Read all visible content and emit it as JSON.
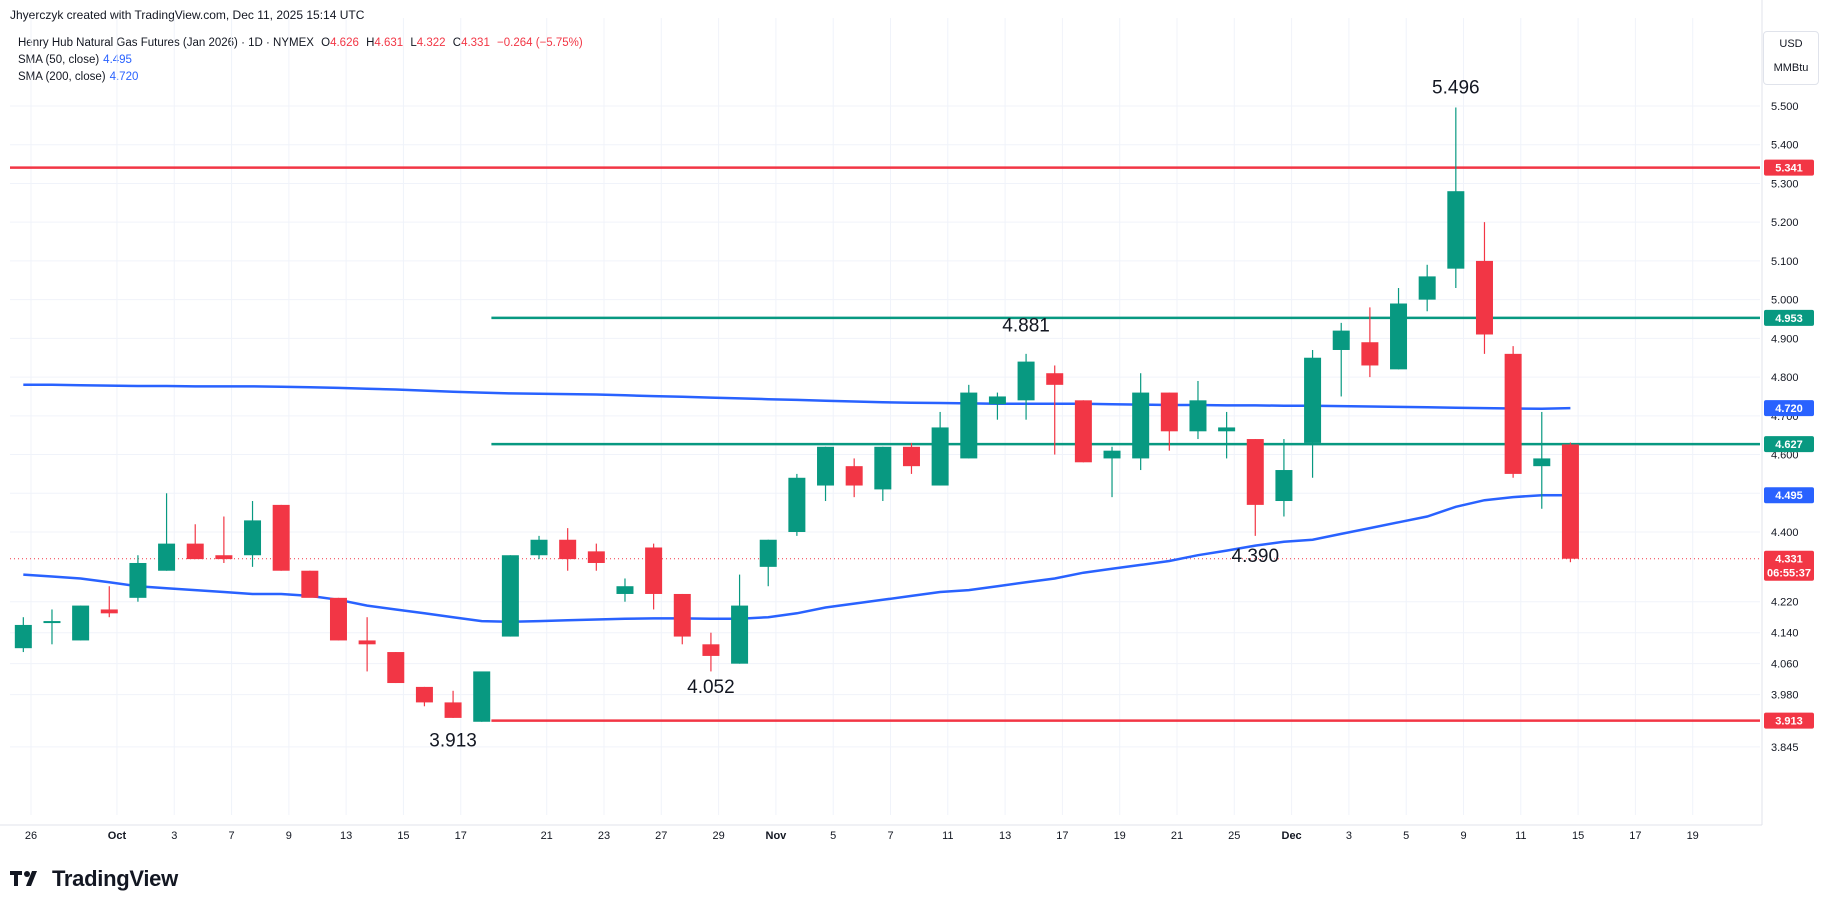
{
  "header": {
    "created_by": "Jhyerczyk created with TradingView.com, Dec 11, 2025 15:14 UTC"
  },
  "legend": {
    "symbol": "Henry Hub Natural Gas Futures (Jan 2026) · 1D · NYMEX",
    "o_label": "O",
    "o": "4.626",
    "h_label": "H",
    "h": "4.631",
    "l_label": "L",
    "l": "4.322",
    "c_label": "C",
    "c": "4.331",
    "change": "−0.264 (−5.75%)",
    "sma50_label": "SMA (50, close)",
    "sma50_value": "4.495",
    "sma200_label": "SMA (200, close)",
    "sma200_value": "4.720"
  },
  "currency": "USD",
  "unit": "MMBtu",
  "brand": "TradingView",
  "colors": {
    "up": "#089981",
    "down": "#f23645",
    "sma": "#2962ff",
    "support": "#f23645",
    "resistance": "#089981"
  },
  "chart_data": {
    "type": "candlestick",
    "y_ticks": [
      "5.500",
      "5.400",
      "5.300",
      "5.200",
      "5.100",
      "5.000",
      "4.900",
      "4.800",
      "4.700",
      "4.600",
      "4.500",
      "4.400",
      "4.220",
      "4.140",
      "4.060",
      "3.980",
      "3.845"
    ],
    "x_ticks": [
      "26",
      "Oct",
      "3",
      "7",
      "9",
      "13",
      "15",
      "17",
      "21",
      "23",
      "27",
      "29",
      "Nov",
      "5",
      "7",
      "11",
      "13",
      "17",
      "19",
      "21",
      "25",
      "Dec",
      "3",
      "5",
      "9",
      "11",
      "15",
      "17",
      "19"
    ],
    "candles": [
      {
        "o": 4.1,
        "h": 4.18,
        "l": 4.09,
        "c": 4.16
      },
      {
        "o": 4.17,
        "h": 4.2,
        "l": 4.11,
        "c": 4.17
      },
      {
        "o": 4.12,
        "h": 4.21,
        "l": 4.12,
        "c": 4.21
      },
      {
        "o": 4.2,
        "h": 4.26,
        "l": 4.18,
        "c": 4.19
      },
      {
        "o": 4.23,
        "h": 4.34,
        "l": 4.22,
        "c": 4.32
      },
      {
        "o": 4.3,
        "h": 4.5,
        "l": 4.3,
        "c": 4.37
      },
      {
        "o": 4.37,
        "h": 4.42,
        "l": 4.33,
        "c": 4.33
      },
      {
        "o": 4.34,
        "h": 4.44,
        "l": 4.32,
        "c": 4.33
      },
      {
        "o": 4.34,
        "h": 4.48,
        "l": 4.31,
        "c": 4.43
      },
      {
        "o": 4.47,
        "h": 4.47,
        "l": 4.3,
        "c": 4.3
      },
      {
        "o": 4.3,
        "h": 4.3,
        "l": 4.24,
        "c": 4.23
      },
      {
        "o": 4.23,
        "h": 4.23,
        "l": 4.12,
        "c": 4.12
      },
      {
        "o": 4.12,
        "h": 4.18,
        "l": 4.04,
        "c": 4.11
      },
      {
        "o": 4.09,
        "h": 4.09,
        "l": 4.01,
        "c": 4.01
      },
      {
        "o": 4.0,
        "h": 4.0,
        "l": 3.95,
        "c": 3.96
      },
      {
        "o": 3.96,
        "h": 3.99,
        "l": 3.92,
        "c": 3.92
      },
      {
        "o": 3.91,
        "h": 4.03,
        "l": 3.91,
        "c": 4.04
      },
      {
        "o": 4.13,
        "h": 4.34,
        "l": 4.13,
        "c": 4.34
      },
      {
        "o": 4.34,
        "h": 4.39,
        "l": 4.33,
        "c": 4.38
      },
      {
        "o": 4.38,
        "h": 4.41,
        "l": 4.3,
        "c": 4.33
      },
      {
        "o": 4.35,
        "h": 4.37,
        "l": 4.3,
        "c": 4.32
      },
      {
        "o": 4.24,
        "h": 4.28,
        "l": 4.22,
        "c": 4.26
      },
      {
        "o": 4.36,
        "h": 4.37,
        "l": 4.2,
        "c": 4.24
      },
      {
        "o": 4.24,
        "h": 4.24,
        "l": 4.11,
        "c": 4.13
      },
      {
        "o": 4.11,
        "h": 4.14,
        "l": 4.04,
        "c": 4.08
      },
      {
        "o": 4.06,
        "h": 4.29,
        "l": 4.06,
        "c": 4.21
      },
      {
        "o": 4.31,
        "h": 4.38,
        "l": 4.26,
        "c": 4.38
      },
      {
        "o": 4.4,
        "h": 4.55,
        "l": 4.39,
        "c": 4.54
      },
      {
        "o": 4.52,
        "h": 4.62,
        "l": 4.48,
        "c": 4.62
      },
      {
        "o": 4.57,
        "h": 4.59,
        "l": 4.49,
        "c": 4.52
      },
      {
        "o": 4.51,
        "h": 4.62,
        "l": 4.48,
        "c": 4.62
      },
      {
        "o": 4.62,
        "h": 4.63,
        "l": 4.55,
        "c": 4.57
      },
      {
        "o": 4.52,
        "h": 4.71,
        "l": 4.52,
        "c": 4.67
      },
      {
        "o": 4.59,
        "h": 4.78,
        "l": 4.59,
        "c": 4.76
      },
      {
        "o": 4.73,
        "h": 4.76,
        "l": 4.69,
        "c": 4.75
      },
      {
        "o": 4.74,
        "h": 4.86,
        "l": 4.69,
        "c": 4.84
      },
      {
        "o": 4.81,
        "h": 4.83,
        "l": 4.6,
        "c": 4.78
      },
      {
        "o": 4.74,
        "h": 4.74,
        "l": 4.58,
        "c": 4.58
      },
      {
        "o": 4.59,
        "h": 4.62,
        "l": 4.49,
        "c": 4.61
      },
      {
        "o": 4.59,
        "h": 4.81,
        "l": 4.56,
        "c": 4.76
      },
      {
        "o": 4.76,
        "h": 4.76,
        "l": 4.61,
        "c": 4.66
      },
      {
        "o": 4.66,
        "h": 4.79,
        "l": 4.64,
        "c": 4.74
      },
      {
        "o": 4.66,
        "h": 4.71,
        "l": 4.59,
        "c": 4.67
      },
      {
        "o": 4.64,
        "h": 4.64,
        "l": 4.39,
        "c": 4.47
      },
      {
        "o": 4.48,
        "h": 4.64,
        "l": 4.44,
        "c": 4.56
      },
      {
        "o": 4.63,
        "h": 4.87,
        "l": 4.54,
        "c": 4.85
      },
      {
        "o": 4.87,
        "h": 4.94,
        "l": 4.75,
        "c": 4.92
      },
      {
        "o": 4.89,
        "h": 4.98,
        "l": 4.8,
        "c": 4.83
      },
      {
        "o": 4.82,
        "h": 5.03,
        "l": 4.82,
        "c": 4.99
      },
      {
        "o": 5.0,
        "h": 5.09,
        "l": 4.97,
        "c": 5.06
      },
      {
        "o": 5.08,
        "h": 5.496,
        "l": 5.03,
        "c": 5.28
      },
      {
        "o": 5.1,
        "h": 5.2,
        "l": 4.86,
        "c": 4.91
      },
      {
        "o": 4.86,
        "h": 4.88,
        "l": 4.54,
        "c": 4.55
      },
      {
        "o": 4.57,
        "h": 4.71,
        "l": 4.46,
        "c": 4.59
      },
      {
        "o": 4.626,
        "h": 4.631,
        "l": 4.322,
        "c": 4.331
      }
    ],
    "sma200": [
      4.78,
      4.78,
      4.779,
      4.778,
      4.777,
      4.777,
      4.776,
      4.776,
      4.776,
      4.775,
      4.774,
      4.772,
      4.77,
      4.768,
      4.765,
      4.762,
      4.76,
      4.758,
      4.757,
      4.756,
      4.755,
      4.753,
      4.751,
      4.749,
      4.747,
      4.745,
      4.743,
      4.741,
      4.739,
      4.737,
      4.735,
      4.734,
      4.733,
      4.732,
      4.731,
      4.731,
      4.731,
      4.731,
      4.73,
      4.729,
      4.728,
      4.728,
      4.727,
      4.727,
      4.726,
      4.726,
      4.725,
      4.724,
      4.723,
      4.722,
      4.721,
      4.72,
      4.719,
      4.718,
      4.72
    ],
    "sma50": [
      4.29,
      4.285,
      4.28,
      4.27,
      4.26,
      4.255,
      4.25,
      4.245,
      4.24,
      4.24,
      4.235,
      4.225,
      4.21,
      4.2,
      4.19,
      4.18,
      4.17,
      4.168,
      4.17,
      4.172,
      4.174,
      4.176,
      4.177,
      4.177,
      4.176,
      4.176,
      4.18,
      4.19,
      4.205,
      4.215,
      4.225,
      4.235,
      4.245,
      4.25,
      4.26,
      4.27,
      4.28,
      4.295,
      4.305,
      4.315,
      4.325,
      4.34,
      4.352,
      4.365,
      4.375,
      4.38,
      4.395,
      4.41,
      4.425,
      4.44,
      4.465,
      4.482,
      4.49,
      4.495,
      4.495
    ],
    "h_lines": [
      {
        "price": 5.341,
        "label": "5.341",
        "color": "#f23645",
        "from_index": -1
      },
      {
        "price": 4.953,
        "label": "4.953",
        "color": "#089981",
        "from_index": 16
      },
      {
        "price": 4.627,
        "label": "4.627",
        "color": "#089981",
        "from_index": 16
      },
      {
        "price": 3.913,
        "label": "3.913",
        "color": "#f23645",
        "from_index": 16
      }
    ],
    "price_badges": [
      {
        "price": 4.72,
        "label": "4.720",
        "color": "#2962ff"
      },
      {
        "price": 4.495,
        "label": "4.495",
        "color": "#2962ff"
      }
    ],
    "last_price": {
      "price": 4.331,
      "label": "4.331",
      "countdown": "06:55:37",
      "color": "#f23645"
    },
    "annotations": [
      {
        "text": "5.496",
        "index": 50,
        "price": 5.496,
        "pos": "above"
      },
      {
        "text": "4.881",
        "index": 35,
        "price": 4.881,
        "pos": "above"
      },
      {
        "text": "4.390",
        "index": 43,
        "price": 4.39,
        "pos": "below"
      },
      {
        "text": "4.052",
        "index": 24,
        "price": 4.052,
        "pos": "below"
      },
      {
        "text": "3.913",
        "index": 15,
        "price": 3.913,
        "pos": "below"
      }
    ]
  }
}
